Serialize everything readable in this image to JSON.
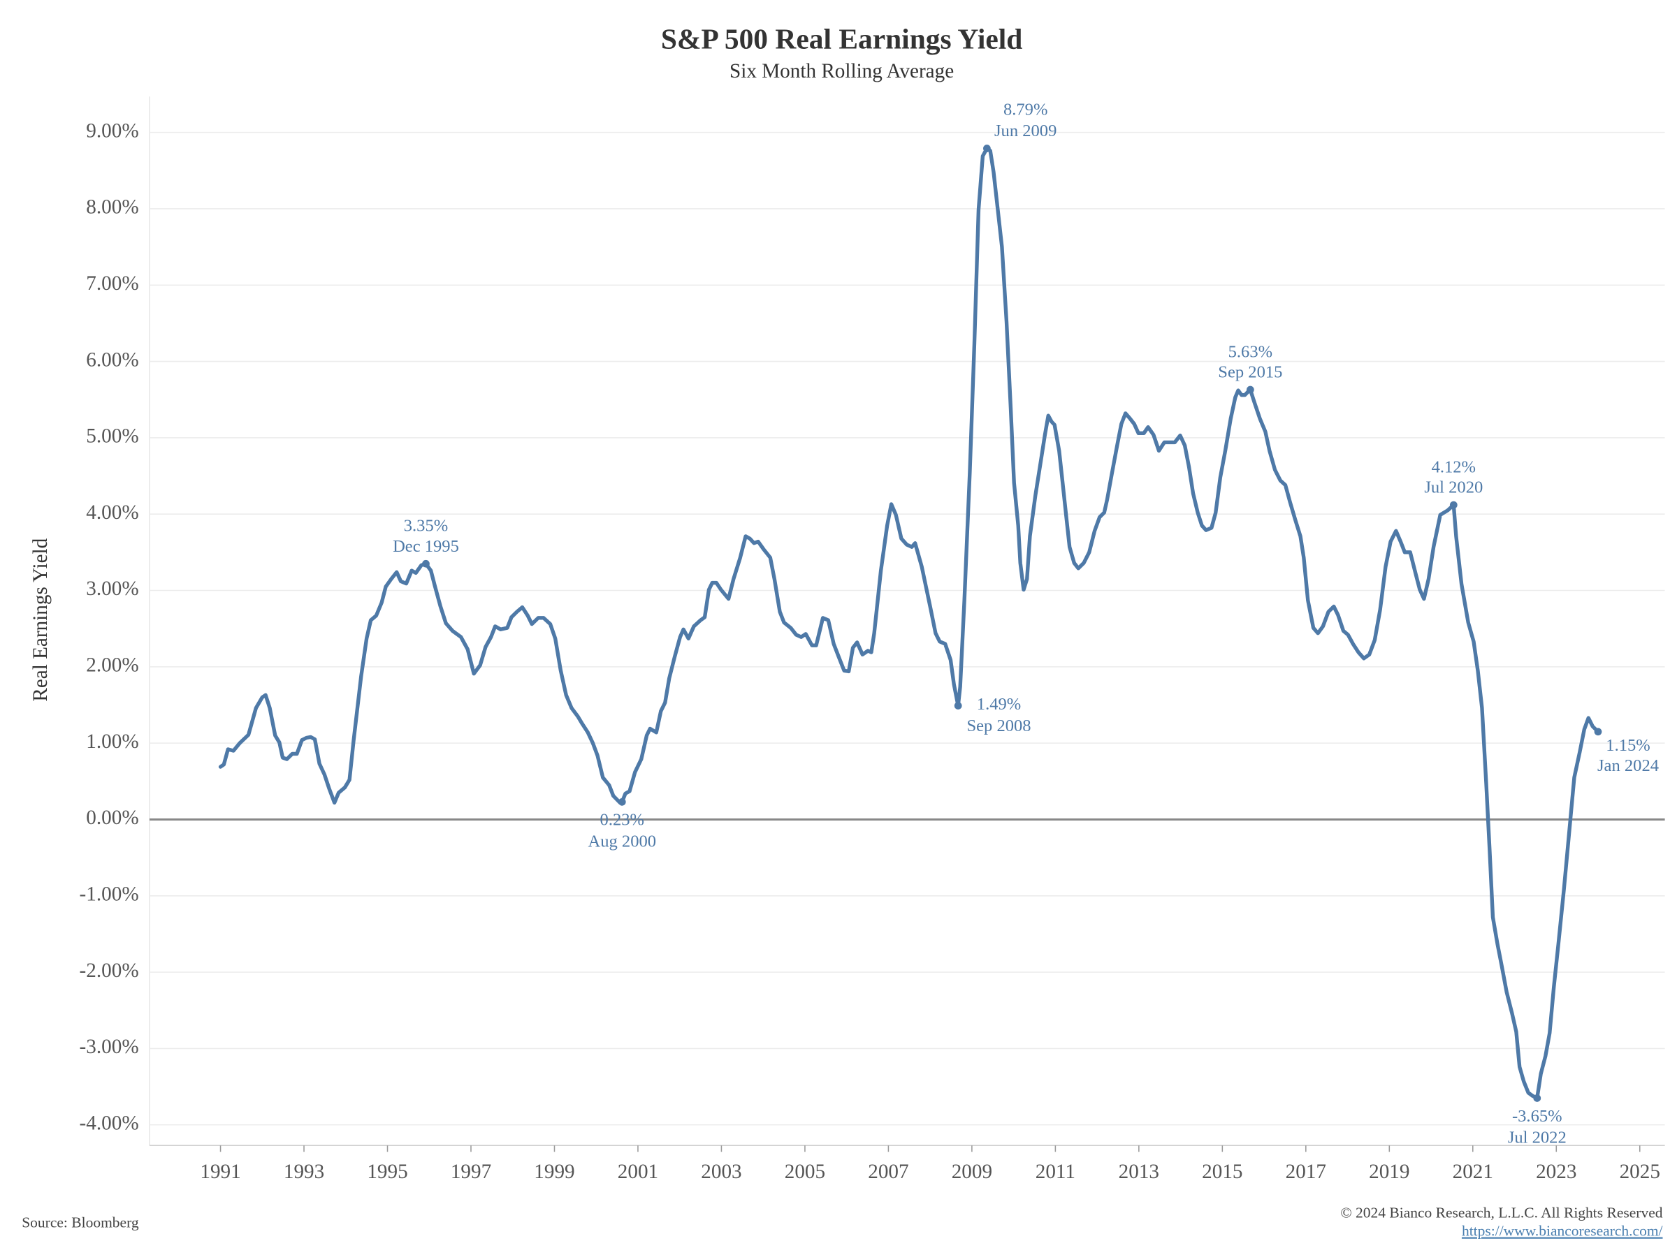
{
  "chart_data": {
    "type": "line",
    "title": "S&P 500 Real Earnings Yield",
    "subtitle": "Six Month Rolling Average",
    "y_label": "Real Earnings Yield",
    "source": "Source: Bloomberg",
    "copyright": "© 2024 Bianco Research, L.L.C. All Rights Reserved",
    "url": "https://www.biancoresearch.com/",
    "xlim": [
      1989.3,
      2025.6
    ],
    "xticks": [
      1991,
      1993,
      1995,
      1997,
      1999,
      2001,
      2003,
      2005,
      2007,
      2009,
      2011,
      2013,
      2015,
      2017,
      2019,
      2021,
      2023,
      2025
    ],
    "ylim": [
      -4.27,
      9.47
    ],
    "yticks": [
      {
        "value": -4,
        "label": "-4.00%"
      },
      {
        "value": -3,
        "label": "-3.00%"
      },
      {
        "value": -2,
        "label": "-2.00%"
      },
      {
        "value": -1,
        "label": "-1.00%"
      },
      {
        "value": 0,
        "label": "0.00%"
      },
      {
        "value": 1,
        "label": "1.00%"
      },
      {
        "value": 2,
        "label": "2.00%"
      },
      {
        "value": 3,
        "label": "3.00%"
      },
      {
        "value": 4,
        "label": "4.00%"
      },
      {
        "value": 5,
        "label": "5.00%"
      },
      {
        "value": 6,
        "label": "6.00%"
      },
      {
        "value": 7,
        "label": "7.00%"
      },
      {
        "value": 8,
        "label": "8.00%"
      },
      {
        "value": 9,
        "label": "9.00%"
      }
    ],
    "grid": true,
    "x": [
      1991.0,
      1991.08,
      1991.18,
      1991.31,
      1991.46,
      1991.67,
      1991.85,
      1992.0,
      1992.08,
      1992.18,
      1992.31,
      1992.41,
      1992.49,
      1992.59,
      1992.72,
      1992.83,
      1992.95,
      1993.06,
      1993.16,
      1993.26,
      1993.37,
      1993.49,
      1993.6,
      1993.73,
      1993.83,
      1993.98,
      1994.09,
      1994.19,
      1994.37,
      1994.5,
      1994.6,
      1994.73,
      1994.86,
      1994.96,
      1995.09,
      1995.22,
      1995.32,
      1995.45,
      1995.58,
      1995.68,
      1995.81,
      1995.92,
      1996.04,
      1996.14,
      1996.27,
      1996.4,
      1996.56,
      1996.76,
      1996.92,
      1997.07,
      1997.22,
      1997.35,
      1997.48,
      1997.58,
      1997.71,
      1997.87,
      1997.97,
      1998.1,
      1998.23,
      1998.36,
      1998.46,
      1998.61,
      1998.74,
      1998.9,
      1999.02,
      1999.15,
      1999.28,
      1999.41,
      1999.56,
      1999.67,
      1999.8,
      1999.92,
      2000.03,
      2000.16,
      2000.31,
      2000.41,
      2000.57,
      2000.62,
      2000.7,
      2000.8,
      2000.93,
      2001.08,
      2001.21,
      2001.29,
      2001.44,
      2001.55,
      2001.65,
      2001.75,
      2001.88,
      2002.01,
      2002.09,
      2002.21,
      2002.34,
      2002.5,
      2002.6,
      2002.7,
      2002.78,
      2002.88,
      2002.99,
      2003.17,
      2003.29,
      2003.45,
      2003.58,
      2003.68,
      2003.78,
      2003.88,
      2004.01,
      2004.17,
      2004.27,
      2004.4,
      2004.5,
      2004.66,
      2004.79,
      2004.91,
      2005.02,
      2005.17,
      2005.27,
      2005.43,
      2005.56,
      2005.69,
      2005.81,
      2005.94,
      2006.05,
      2006.15,
      2006.25,
      2006.38,
      2006.51,
      2006.59,
      2006.66,
      2006.82,
      2006.97,
      2007.07,
      2007.18,
      2007.31,
      2007.44,
      2007.56,
      2007.64,
      2007.8,
      2007.9,
      2008.0,
      2008.13,
      2008.23,
      2008.36,
      2008.49,
      2008.57,
      2008.67,
      2008.72,
      2008.82,
      2008.95,
      2009.06,
      2009.16,
      2009.26,
      2009.36,
      2009.44,
      2009.52,
      2009.62,
      2009.72,
      2009.83,
      2009.93,
      2010.01,
      2010.11,
      2010.16,
      2010.24,
      2010.32,
      2010.39,
      2010.52,
      2010.65,
      2010.75,
      2010.83,
      2010.91,
      2010.98,
      2011.09,
      2011.16,
      2011.27,
      2011.34,
      2011.45,
      2011.55,
      2011.68,
      2011.81,
      2011.94,
      2012.06,
      2012.17,
      2012.24,
      2012.35,
      2012.48,
      2012.58,
      2012.68,
      2012.79,
      2012.89,
      2012.99,
      2013.12,
      2013.22,
      2013.35,
      2013.48,
      2013.61,
      2013.74,
      2013.86,
      2013.99,
      2014.1,
      2014.2,
      2014.3,
      2014.41,
      2014.51,
      2014.61,
      2014.74,
      2014.84,
      2014.95,
      2015.07,
      2015.2,
      2015.31,
      2015.38,
      2015.46,
      2015.54,
      2015.61,
      2015.67,
      2015.77,
      2015.9,
      2016.03,
      2016.13,
      2016.26,
      2016.39,
      2016.51,
      2016.62,
      2016.75,
      2016.87,
      2016.95,
      2017.05,
      2017.18,
      2017.29,
      2017.41,
      2017.54,
      2017.67,
      2017.77,
      2017.9,
      2018.01,
      2018.13,
      2018.26,
      2018.39,
      2018.52,
      2018.65,
      2018.78,
      2018.91,
      2019.03,
      2019.16,
      2019.27,
      2019.37,
      2019.5,
      2019.63,
      2019.73,
      2019.83,
      2019.94,
      2020.06,
      2020.22,
      2020.4,
      2020.54,
      2020.6,
      2020.73,
      2020.89,
      2021.02,
      2021.12,
      2021.22,
      2021.32,
      2021.4,
      2021.48,
      2021.59,
      2021.69,
      2021.81,
      2021.94,
      2022.04,
      2022.12,
      2022.22,
      2022.33,
      2022.43,
      2022.54,
      2022.63,
      2022.74,
      2022.84,
      2022.94,
      2023.05,
      2023.18,
      2023.3,
      2023.43,
      2023.56,
      2023.67,
      2023.77,
      2023.87,
      2024.0
    ],
    "series": [
      {
        "name": "Real Earnings Yield",
        "color": "#4e79a7",
        "values": [
          0.69,
          0.72,
          0.92,
          0.9,
          1.0,
          1.11,
          1.46,
          1.6,
          1.63,
          1.46,
          1.1,
          1.01,
          0.81,
          0.79,
          0.86,
          0.86,
          1.04,
          1.07,
          1.08,
          1.05,
          0.73,
          0.59,
          0.41,
          0.22,
          0.35,
          0.42,
          0.52,
          1.04,
          1.88,
          2.37,
          2.61,
          2.67,
          2.84,
          3.05,
          3.15,
          3.24,
          3.12,
          3.09,
          3.26,
          3.23,
          3.33,
          3.35,
          3.26,
          3.05,
          2.79,
          2.57,
          2.47,
          2.39,
          2.23,
          1.91,
          2.02,
          2.26,
          2.39,
          2.53,
          2.49,
          2.51,
          2.65,
          2.72,
          2.78,
          2.67,
          2.56,
          2.64,
          2.64,
          2.56,
          2.37,
          1.95,
          1.63,
          1.46,
          1.35,
          1.25,
          1.14,
          1.0,
          0.84,
          0.55,
          0.45,
          0.31,
          0.22,
          0.23,
          0.34,
          0.37,
          0.62,
          0.79,
          1.1,
          1.19,
          1.14,
          1.42,
          1.53,
          1.85,
          2.13,
          2.39,
          2.49,
          2.37,
          2.53,
          2.61,
          2.65,
          3.01,
          3.1,
          3.1,
          3.01,
          2.89,
          3.15,
          3.43,
          3.71,
          3.68,
          3.62,
          3.64,
          3.54,
          3.43,
          3.15,
          2.72,
          2.58,
          2.51,
          2.42,
          2.39,
          2.43,
          2.28,
          2.28,
          2.64,
          2.61,
          2.3,
          2.13,
          1.95,
          1.94,
          2.25,
          2.32,
          2.16,
          2.21,
          2.19,
          2.44,
          3.26,
          3.85,
          4.13,
          3.99,
          3.68,
          3.6,
          3.57,
          3.62,
          3.31,
          3.05,
          2.79,
          2.44,
          2.33,
          2.3,
          2.09,
          1.77,
          1.49,
          1.74,
          2.87,
          4.55,
          6.24,
          7.99,
          8.69,
          8.79,
          8.76,
          8.48,
          7.99,
          7.5,
          6.52,
          5.39,
          4.41,
          3.85,
          3.36,
          3.01,
          3.15,
          3.71,
          4.24,
          4.69,
          5.04,
          5.29,
          5.21,
          5.17,
          4.83,
          4.48,
          3.92,
          3.57,
          3.36,
          3.29,
          3.36,
          3.5,
          3.78,
          3.96,
          4.02,
          4.19,
          4.52,
          4.9,
          5.18,
          5.32,
          5.25,
          5.18,
          5.06,
          5.06,
          5.14,
          5.04,
          4.83,
          4.94,
          4.94,
          4.94,
          5.03,
          4.9,
          4.62,
          4.27,
          4.02,
          3.85,
          3.79,
          3.82,
          4.02,
          4.48,
          4.83,
          5.25,
          5.53,
          5.62,
          5.56,
          5.56,
          5.6,
          5.63,
          5.46,
          5.25,
          5.08,
          4.83,
          4.58,
          4.44,
          4.38,
          4.16,
          3.92,
          3.71,
          3.43,
          2.87,
          2.51,
          2.44,
          2.53,
          2.72,
          2.79,
          2.68,
          2.47,
          2.42,
          2.3,
          2.19,
          2.11,
          2.16,
          2.35,
          2.75,
          3.31,
          3.64,
          3.78,
          3.64,
          3.5,
          3.5,
          3.22,
          3.01,
          2.89,
          3.15,
          3.57,
          3.99,
          4.05,
          4.12,
          3.71,
          3.08,
          2.58,
          2.33,
          1.95,
          1.46,
          0.48,
          -0.37,
          -1.28,
          -1.63,
          -1.91,
          -2.26,
          -2.54,
          -2.78,
          -3.24,
          -3.43,
          -3.58,
          -3.62,
          -3.65,
          -3.33,
          -3.1,
          -2.8,
          -2.2,
          -1.63,
          -0.93,
          -0.22,
          0.55,
          0.88,
          1.18,
          1.33,
          1.22,
          1.15
        ]
      }
    ],
    "annotations": [
      {
        "x": 1995.92,
        "y": 3.35,
        "value_label": "3.35%",
        "date": "Dec 1995",
        "position": "above"
      },
      {
        "x": 2000.62,
        "y": 0.23,
        "value_label": "0.23%",
        "date": "Aug 2000",
        "position": "below"
      },
      {
        "x": 2008.67,
        "y": 1.49,
        "value_label": "1.49%",
        "date": "Sep 2008",
        "position": "right"
      },
      {
        "x": 2009.36,
        "y": 8.79,
        "value_label": "8.79%",
        "date": "Jun 2009",
        "position": "upper-right"
      },
      {
        "x": 2015.67,
        "y": 5.63,
        "value_label": "5.63%",
        "date": "Sep 2015",
        "position": "above"
      },
      {
        "x": 2020.54,
        "y": 4.12,
        "value_label": "4.12%",
        "date": "Jul 2020",
        "position": "above"
      },
      {
        "x": 2022.54,
        "y": -3.65,
        "value_label": "-3.65%",
        "date": "Jul 2022",
        "position": "below"
      },
      {
        "x": 2024.0,
        "y": 1.15,
        "value_label": "1.15%",
        "date": "Jan 2024",
        "position": "lower-right"
      }
    ]
  }
}
